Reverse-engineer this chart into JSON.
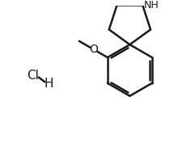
{
  "bg_color": "#ffffff",
  "line_color": "#1a1a1a",
  "bond_lw": 1.8,
  "wedge_color": "#3a3a8a",
  "text_color": "#1a1a1a",
  "nh_text": "NH",
  "o_text": "O",
  "hcl_h": "H",
  "hcl_cl": "Cl",
  "font_size": 9,
  "hcl_font_size": 11
}
